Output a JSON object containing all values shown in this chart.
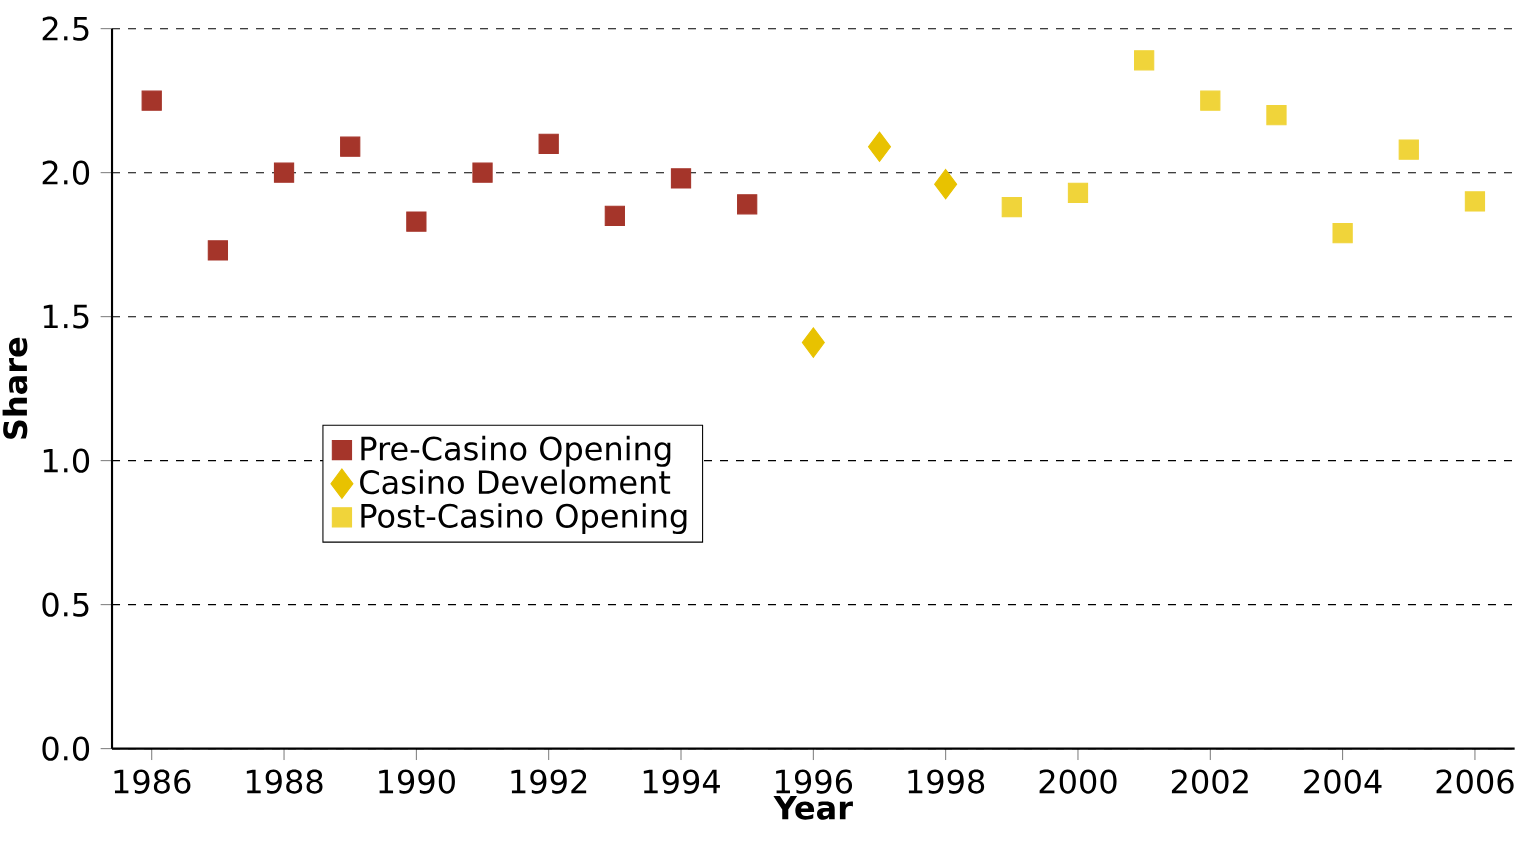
{
  "chart_data": {
    "type": "scatter",
    "xlabel": "Year",
    "ylabel": "Share",
    "xlim": [
      1985.4,
      2006.6
    ],
    "ylim": [
      0,
      2.5
    ],
    "xticks": [
      1986,
      1988,
      1990,
      1992,
      1994,
      1996,
      1998,
      2000,
      2002,
      2004,
      2006
    ],
    "yticks": [
      {
        "value": 0,
        "label": "0.0"
      },
      {
        "value": 0.5,
        "label": "0.5"
      },
      {
        "value": 1,
        "label": "1.0"
      },
      {
        "value": 1.5,
        "label": "1.5"
      },
      {
        "value": 2,
        "label": "2.0"
      },
      {
        "value": 2.5,
        "label": "2.5"
      }
    ],
    "grid": "y",
    "legend": "left",
    "series": [
      {
        "name": "Pre-Casino Opening",
        "color": "#a5352a",
        "marker": "square",
        "x": [
          1986,
          1987,
          1988,
          1989,
          1990,
          1991,
          1992,
          1993,
          1994,
          1995
        ],
        "values": [
          2.25,
          1.73,
          2.0,
          2.09,
          1.83,
          2.0,
          2.1,
          1.85,
          1.98,
          1.89
        ]
      },
      {
        "name": "Casino Develoment",
        "color": "#e8c200",
        "marker": "diamond",
        "x": [
          1996,
          1997,
          1998
        ],
        "values": [
          1.41,
          2.09,
          1.96
        ]
      },
      {
        "name": "Post-Casino Opening",
        "color": "#f0d43a",
        "marker": "square",
        "x": [
          1999,
          2000,
          2001,
          2002,
          2003,
          2004,
          2005,
          2006
        ],
        "values": [
          1.88,
          1.93,
          2.39,
          2.25,
          2.2,
          1.79,
          2.08,
          1.9
        ]
      }
    ]
  }
}
